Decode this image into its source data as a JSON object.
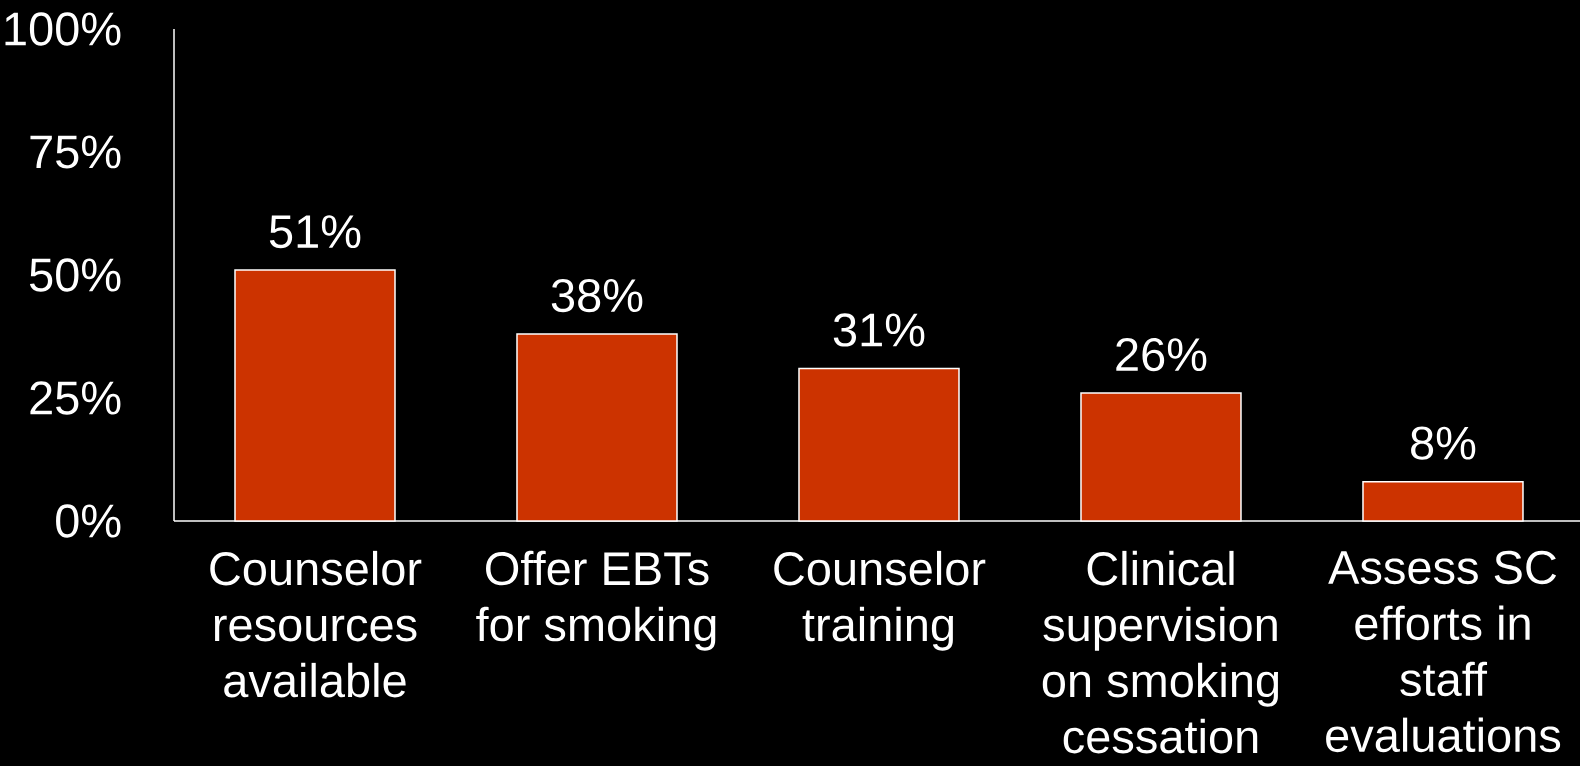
{
  "chart_data": {
    "type": "bar",
    "categories": [
      "Counselor resources available",
      "Offer EBTs for smoking",
      "Counselor training",
      "Clinical supervision on smoking cessation",
      "Assess SC efforts in staff evaluations"
    ],
    "values": [
      51,
      38,
      31,
      26,
      8
    ],
    "value_labels": [
      "51%",
      "38%",
      "31%",
      "26%",
      "8%"
    ],
    "color": "#cc3300",
    "ylim": [
      0,
      100
    ],
    "yticks": [
      {
        "value": 0,
        "label": "0%"
      },
      {
        "value": 25,
        "label": "25%"
      },
      {
        "value": 50,
        "label": "50%"
      },
      {
        "value": 75,
        "label": "75%"
      },
      {
        "value": 100,
        "label": "100%"
      }
    ],
    "grid": false
  }
}
